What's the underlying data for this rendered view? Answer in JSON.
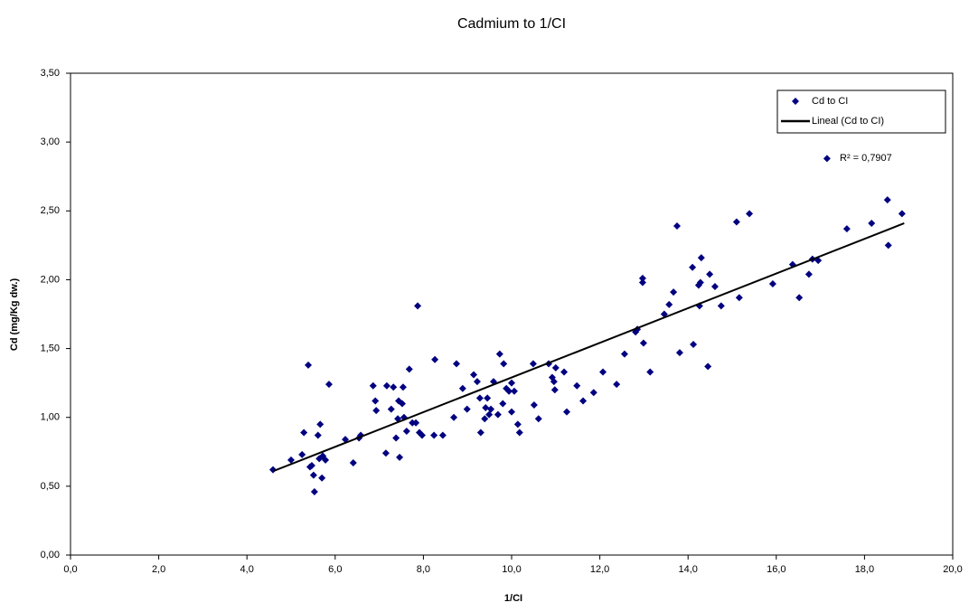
{
  "chart_data": {
    "type": "scatter",
    "title": "Cadmium to 1/CI",
    "x_label": "1/CI",
    "y_label": "Cd (mg/Kg dw.)",
    "annotation": "R² = 0,7907",
    "xlim": [
      0,
      20
    ],
    "ylim": [
      0,
      3.5
    ],
    "xticks": [
      {
        "value": 0,
        "label": "0,0"
      },
      {
        "value": 2,
        "label": "2,0"
      },
      {
        "value": 4,
        "label": "4,0"
      },
      {
        "value": 6,
        "label": "6,0"
      },
      {
        "value": 8,
        "label": "8,0"
      },
      {
        "value": 10,
        "label": "10,0"
      },
      {
        "value": 12,
        "label": "12,0"
      },
      {
        "value": 14,
        "label": "14,0"
      },
      {
        "value": 16,
        "label": "16,0"
      },
      {
        "value": 18,
        "label": "18,0"
      },
      {
        "value": 20,
        "label": "20,0"
      }
    ],
    "yticks": [
      {
        "value": 0,
        "label": "0,00"
      },
      {
        "value": 0.5,
        "label": "0,50"
      },
      {
        "value": 1,
        "label": "1,00"
      },
      {
        "value": 1.5,
        "label": "1,50"
      },
      {
        "value": 2,
        "label": "2,00"
      },
      {
        "value": 2.5,
        "label": "2,50"
      },
      {
        "value": 3,
        "label": "3,00"
      },
      {
        "value": 3.5,
        "label": "3,50"
      }
    ],
    "legend": "top-right",
    "series": [
      {
        "name": "Cd to CI",
        "color": "#000080",
        "x": [
          4.59,
          5.0,
          5.29,
          5.25,
          5.39,
          5.47,
          5.51,
          5.53,
          5.43,
          5.61,
          5.66,
          5.7,
          5.72,
          5.78,
          5.64,
          5.86,
          6.23,
          6.41,
          6.54,
          6.58,
          6.86,
          6.91,
          6.93,
          7.17,
          7.15,
          7.27,
          7.32,
          7.38,
          7.42,
          7.44,
          7.46,
          7.54,
          7.52,
          7.56,
          7.62,
          7.68,
          7.75,
          7.83,
          7.87,
          7.91,
          7.97,
          8.24,
          8.26,
          8.44,
          8.69,
          8.75,
          8.89,
          8.99,
          9.14,
          9.22,
          9.28,
          9.3,
          9.39,
          9.41,
          9.45,
          9.49,
          9.53,
          9.59,
          9.69,
          9.73,
          9.8,
          9.82,
          9.88,
          9.94,
          10.0,
          10.0,
          10.06,
          10.14,
          10.18,
          10.49,
          10.51,
          10.61,
          10.84,
          10.92,
          10.96,
          10.98,
          11.0,
          11.19,
          11.25,
          11.48,
          11.62,
          11.86,
          12.07,
          12.38,
          12.56,
          12.81,
          12.85,
          12.97,
          12.97,
          12.99,
          13.14,
          13.46,
          13.57,
          13.67,
          13.75,
          13.81,
          14.1,
          14.12,
          14.24,
          14.26,
          14.28,
          14.3,
          14.45,
          14.49,
          14.61,
          14.75,
          15.1,
          15.16,
          15.39,
          15.92,
          16.37,
          16.52,
          16.74,
          16.82,
          16.95,
          17.15,
          17.6,
          18.16,
          18.52,
          18.54,
          18.85
        ],
        "values": [
          0.62,
          0.69,
          0.89,
          0.73,
          1.38,
          0.65,
          0.58,
          0.46,
          0.64,
          0.87,
          0.95,
          0.56,
          0.72,
          0.69,
          0.7,
          1.24,
          0.84,
          0.67,
          0.85,
          0.87,
          1.23,
          1.12,
          1.05,
          1.23,
          0.74,
          1.06,
          1.22,
          0.85,
          0.99,
          1.12,
          0.71,
          1.22,
          1.1,
          1.0,
          0.9,
          1.35,
          0.96,
          0.96,
          1.81,
          0.89,
          0.87,
          0.87,
          1.42,
          0.87,
          1.0,
          1.39,
          1.21,
          1.06,
          1.31,
          1.26,
          1.14,
          0.89,
          0.99,
          1.07,
          1.14,
          1.02,
          1.06,
          1.26,
          1.02,
          1.46,
          1.1,
          1.39,
          1.21,
          1.19,
          1.25,
          1.04,
          1.19,
          0.95,
          0.89,
          1.39,
          1.09,
          0.99,
          1.39,
          1.29,
          1.26,
          1.2,
          1.36,
          1.33,
          1.04,
          1.23,
          1.12,
          1.18,
          1.33,
          1.24,
          1.46,
          1.62,
          1.64,
          2.01,
          1.98,
          1.54,
          1.33,
          1.75,
          1.82,
          1.91,
          2.39,
          1.47,
          2.09,
          1.53,
          1.96,
          1.81,
          1.98,
          2.16,
          1.37,
          2.04,
          1.95,
          1.81,
          2.42,
          1.87,
          2.48,
          1.97,
          2.11,
          1.87,
          2.04,
          2.15,
          2.14,
          2.88,
          2.37,
          2.41,
          2.58,
          2.25,
          2.48
        ]
      },
      {
        "name": "Lineal (Cd to CI)",
        "color": "#000000",
        "x": [
          4.6,
          18.9
        ],
        "values": [
          0.61,
          2.41
        ]
      }
    ]
  }
}
